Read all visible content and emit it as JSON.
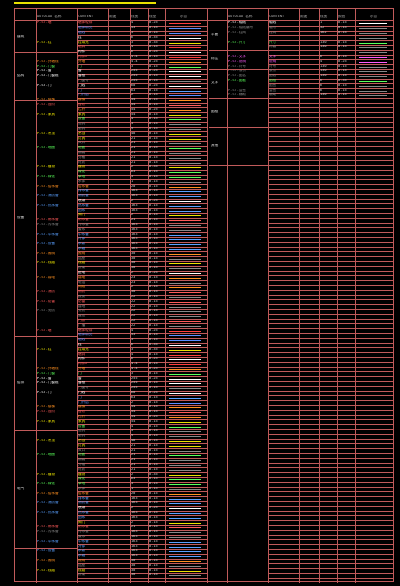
{
  "colors": {
    "border": "#c05a5a",
    "title_bar": "#e8e000",
    "background": "#000000"
  },
  "headers": {
    "left": [
      "AUTOCAD 名称",
      "CONTENT",
      "用途",
      "线宽",
      "线型",
      "示意"
    ],
    "right": [
      "AUTOCAD 名称",
      "CONTENT",
      "用途",
      "线宽",
      "颜色",
      "示意"
    ]
  },
  "left_groups": [
    {
      "name": "建筑",
      "rows": 8
    },
    {
      "name": "结构",
      "rows": 12
    },
    {
      "name": "设备",
      "rows": 60
    },
    {
      "name": "给排",
      "rows": 24
    },
    {
      "name": "电气",
      "rows": 30
    }
  ],
  "right_groups": [
    {
      "name": "平面",
      "rows": 6
    },
    {
      "name": "标注",
      "rows": 10
    },
    {
      "name": "文字",
      "rows": 12
    },
    {
      "name": "图框",
      "rows": 16
    },
    {
      "name": "其他",
      "rows": 8
    }
  ],
  "left_rows": [
    {
      "n": "P-ST-墙",
      "c": "墙体轮廓",
      "w": "4",
      "t": "0.25",
      "col": "#ff5a5a",
      "l": "#ff3c3c"
    },
    {
      "n": "",
      "c": "墙体填充",
      "w": "53",
      "t": "0.15",
      "col": "#5a8cff",
      "l": "#5a8cff"
    },
    {
      "n": "",
      "c": "墙线",
      "w": "3",
      "t": "0.15",
      "col": "#5a8cff",
      "l": "#5a8cff"
    },
    {
      "n": "",
      "c": "柱",
      "w": "6",
      "t": "0.35",
      "col": "#ffffff",
      "l": "#ffffff"
    },
    {
      "n": "P-ST-柱",
      "c": "柱填充",
      "w": "3",
      "t": "0.35",
      "col": "#e8e000",
      "l": "#e8e000"
    },
    {
      "n": "",
      "c": "墙洞",
      "w": "4",
      "t": "0.15",
      "col": "#ff5a5a",
      "l": "#ff3c3c"
    },
    {
      "n": "",
      "c": "构件",
      "w": "6",
      "t": "0.25",
      "col": "#ffffff",
      "l": "#ffffff"
    },
    {
      "n": "",
      "c": "构件2",
      "w": "4.4",
      "t": "0.15",
      "col": "#ff5a5a",
      "l": "#ff3c3c"
    },
    {
      "n": "P-ST-外墙线",
      "c": "外墙",
      "w": "4.4",
      "t": "0.25",
      "col": "#ff9020",
      "l": "#ff9020"
    },
    {
      "n": "P-ST-门窗",
      "c": "门",
      "w": "3",
      "t": "0.15",
      "col": "#5aff5a",
      "l": "#5aff5a"
    },
    {
      "n": "P-ST-窗",
      "c": "窗",
      "w": "255",
      "t": "0.25",
      "col": "#ffffff",
      "l": "#ffffff"
    },
    {
      "n": "P-ST-门窗框",
      "c": "窗框",
      "w": "255",
      "t": "0.15",
      "col": "#ffffff",
      "l": "#ffffff"
    },
    {
      "n": "",
      "c": "门窗号",
      "w": "255",
      "t": "0.15",
      "col": "#888888",
      "l": "#888888"
    },
    {
      "n": "P-ST-门",
      "c": "门线",
      "w": "60",
      "t": "0.25",
      "col": "#ffffff",
      "l": "#ffffff"
    },
    {
      "n": "",
      "c": "门",
      "w": "63",
      "t": "0.15",
      "col": "#5aa0ff",
      "l": "#5aa0ff"
    },
    {
      "n": "",
      "c": "门开启",
      "w": "2",
      "t": "0.15",
      "col": "#5a8cff",
      "l": "#5a8cff"
    },
    {
      "n": "P-ST-楼梯",
      "c": "楼梯",
      "w": "54",
      "t": "0.15",
      "col": "#ff9020",
      "l": "#ff9020"
    },
    {
      "n": "P-ST-台阶",
      "c": "台阶",
      "w": "54",
      "t": "0.15",
      "col": "#ff5a5a",
      "l": "#ff5a5a"
    },
    {
      "n": "",
      "c": "栏杆",
      "w": "54",
      "t": "0.25",
      "col": "#ff9020",
      "l": "#ff9020"
    },
    {
      "n": "P-ST-家具",
      "c": "家具",
      "w": "54",
      "t": "0.15",
      "col": "#e8e000",
      "l": "#e8e000"
    },
    {
      "n": "",
      "c": "设备",
      "w": "4",
      "t": "0.15",
      "col": "#5aff5a",
      "l": "#5aff5a"
    },
    {
      "n": "",
      "c": "洁具",
      "w": "3",
      "t": "0.15",
      "col": "#888888",
      "l": "#888888"
    },
    {
      "n": "",
      "c": "厨具",
      "w": "9",
      "t": "0.15",
      "col": "#888888",
      "l": "#888888"
    },
    {
      "n": "P-ST-吊顶",
      "c": "吊顶",
      "w": "48",
      "t": "0.15",
      "col": "#e8e000",
      "l": "#e8e000"
    },
    {
      "n": "",
      "c": "灯具",
      "w": "21",
      "t": "0.15",
      "col": "#e8e000",
      "l": "#e8e000"
    },
    {
      "n": "",
      "c": "风口",
      "w": "21",
      "t": "0.15",
      "col": "#888888",
      "l": "#888888"
    },
    {
      "n": "P-ST-地面",
      "c": "地面",
      "w": "21",
      "t": "0.15",
      "col": "#5aff5a",
      "l": "#5aff5a"
    },
    {
      "n": "",
      "c": "铺装",
      "w": "21",
      "t": "0.15",
      "col": "#888888",
      "l": "#888888"
    },
    {
      "n": "",
      "c": "分格",
      "w": "21",
      "t": "0.15",
      "col": "#888888",
      "l": "#888888"
    },
    {
      "n": "",
      "c": "材质",
      "w": "21",
      "t": "0.15",
      "col": "#888888",
      "l": "#888888"
    },
    {
      "n": "P-ST-植物",
      "c": "植物",
      "w": "2",
      "t": "0.35",
      "col": "#e8e000",
      "l": "#e8e000"
    },
    {
      "n": "",
      "c": "绿化",
      "w": "63",
      "t": "0.15",
      "col": "#5aff5a",
      "l": "#5aff5a"
    },
    {
      "n": "P-ST-绿化",
      "c": "草地",
      "w": "3",
      "t": "0.15",
      "col": "#5aff5a",
      "l": "#5aff5a"
    },
    {
      "n": "",
      "c": "水体",
      "w": "1",
      "t": "0.15",
      "col": "#888888",
      "l": "#888888"
    },
    {
      "n": "P-ST-给水管",
      "c": "给水管",
      "w": "20",
      "t": "0.15",
      "col": "#ff9020",
      "l": "#ff9020"
    },
    {
      "n": "",
      "c": "排水管",
      "w": "163",
      "t": "0.15",
      "col": "#5aa0ff",
      "l": "#5aa0ff"
    },
    {
      "n": "P-ST-消防管",
      "c": "消防管",
      "w": "163",
      "t": "0.15",
      "col": "#5aa0ff",
      "l": "#5aa0ff"
    },
    {
      "n": "",
      "c": "喷淋",
      "w": "2",
      "t": "0.25",
      "col": "#ffffff",
      "l": "#ffffff"
    },
    {
      "n": "P-ST-热水管",
      "c": "热水管",
      "w": "163",
      "t": "0.15",
      "col": "#5aa0ff",
      "l": "#5aa0ff"
    },
    {
      "n": "",
      "c": "回水",
      "w": "163",
      "t": "0.15",
      "col": "#5aa0ff",
      "l": "#5aa0ff"
    },
    {
      "n": "",
      "c": "阀门",
      "w": "2",
      "t": "0.15",
      "col": "#e8e000",
      "l": "#e8e000"
    },
    {
      "n": "P-ST-雨水管",
      "c": "雨水管",
      "w": "21",
      "t": "0.15",
      "col": "#ff5a5a",
      "l": "#ff5a5a"
    },
    {
      "n": "P-ST-污水管",
      "c": "污水管",
      "w": "163",
      "t": "0.15",
      "col": "#888888",
      "l": "#888888"
    },
    {
      "n": "",
      "c": "废水",
      "w": "163",
      "t": "0.15",
      "col": "#888888",
      "l": "#888888"
    },
    {
      "n": "P-ST-中水管",
      "c": "中水管",
      "w": "163",
      "t": "0.15",
      "col": "#5aa0ff",
      "l": "#5aa0ff"
    },
    {
      "n": "",
      "c": "冷却",
      "w": "163",
      "t": "0.15",
      "col": "#5aa0ff",
      "l": "#5aa0ff"
    },
    {
      "n": "P-ST-设备",
      "c": "水泵",
      "w": "163",
      "t": "0.15",
      "col": "#5aa0ff",
      "l": "#5aa0ff"
    },
    {
      "n": "",
      "c": "水箱",
      "w": "163",
      "t": "0.15",
      "col": "#5aa0ff",
      "l": "#5aa0ff"
    },
    {
      "n": "P-ST-照明",
      "c": "照明",
      "w": "30",
      "t": "0.15",
      "col": "#ff9020",
      "l": "#ff9020"
    },
    {
      "n": "",
      "c": "插座",
      "w": "30",
      "t": "0.15",
      "col": "#888888",
      "l": "#888888"
    },
    {
      "n": "P-ST-线路",
      "c": "线路",
      "w": "30",
      "t": "0.15",
      "col": "#e8e000",
      "l": "#e8e000"
    },
    {
      "n": "",
      "c": "桥架",
      "w": "30",
      "t": "0.15",
      "col": "#888888",
      "l": "#888888"
    },
    {
      "n": "",
      "c": "配电",
      "w": "2",
      "t": "0.25",
      "col": "#ffffff",
      "l": "#ffffff"
    },
    {
      "n": "P-ST-弱电",
      "c": "弱电",
      "w": "23",
      "t": "0.15",
      "col": "#ff9020",
      "l": "#ff9020"
    },
    {
      "n": "",
      "c": "电话",
      "w": "23",
      "t": "0.15",
      "col": "#888888",
      "l": "#888888"
    },
    {
      "n": "",
      "c": "网络",
      "w": "2",
      "t": "0.15",
      "col": "#ff9020",
      "l": "#ff9020"
    },
    {
      "n": "P-ST-消防",
      "c": "消防",
      "w": "30",
      "t": "0.15",
      "col": "#ff5a5a",
      "l": "#ff5a5a"
    },
    {
      "n": "",
      "c": "报警",
      "w": "22",
      "t": "0.15",
      "col": "#888888",
      "l": "#888888"
    },
    {
      "n": "P-ST-防雷",
      "c": "防雷",
      "w": "22",
      "t": "0.15",
      "col": "#ff5a5a",
      "l": "#ff5a5a"
    },
    {
      "n": "",
      "c": "接地",
      "w": "22",
      "t": "0.15",
      "col": "#888888",
      "l": "#888888"
    },
    {
      "n": "P-ST-安防",
      "c": "安防",
      "w": "22",
      "t": "0.15",
      "col": "#888888",
      "l": "#888888"
    },
    {
      "n": "",
      "c": "监控",
      "w": "22",
      "t": "0.15",
      "col": "#888888",
      "l": "#888888"
    },
    {
      "n": "",
      "c": "门禁",
      "w": "22",
      "t": "0.15",
      "col": "#ff5a5a",
      "l": "#ff5a5a"
    },
    {
      "n": "",
      "c": "广播",
      "w": "22",
      "t": "0.15",
      "col": "#888888",
      "l": "#888888"
    }
  ],
  "right_rows": [
    {
      "n": "P-ST-轴线",
      "c": "轴线",
      "w": "1",
      "t": "0.15",
      "col": "#ffffff",
      "l": "#ffffff"
    },
    {
      "n": "P-ST-轴线编号",
      "c": "轴号",
      "w": "32",
      "t": "0.15",
      "col": "#888888",
      "l": "#888888"
    },
    {
      "n": "P-ST-柱网",
      "c": "柱网",
      "w": "162",
      "t": "0.15",
      "col": "#888888",
      "l": "#888888"
    },
    {
      "n": "",
      "c": "",
      "w": "",
      "t": "",
      "col": "#888888",
      "l": "#888888"
    },
    {
      "n": "P-ST-尺寸",
      "c": "尺寸",
      "w": "130",
      "t": "0.15",
      "col": "#5aff5a",
      "l": "#5aff5a"
    },
    {
      "n": "",
      "c": "标高",
      "w": "130",
      "t": "0.15",
      "col": "#888888",
      "l": "#888888"
    },
    {
      "n": "",
      "c": "",
      "w": "",
      "t": "",
      "col": "#888888",
      "l": "#888888"
    },
    {
      "n": "P-ST-文字",
      "c": "文字",
      "w": "6",
      "t": "0.15",
      "col": "#ff5aff",
      "l": "#ff5aff"
    },
    {
      "n": "P-ST-说明",
      "c": "说明",
      "w": "4",
      "t": "0.25",
      "col": "#ff5aff",
      "l": "#ff5aff"
    },
    {
      "n": "P-ST-符号",
      "c": "符号",
      "w": "130",
      "t": "0.15",
      "col": "#888888",
      "l": "#888888"
    },
    {
      "n": "P-ST-索引",
      "c": "索引",
      "w": "130",
      "t": "0.15",
      "col": "#888888",
      "l": "#888888"
    },
    {
      "n": "P-ST-图名",
      "c": "图名",
      "w": "130",
      "t": "0.15",
      "col": "#888888",
      "l": "#888888"
    },
    {
      "n": "P-ST-图框",
      "c": "图框",
      "w": "6",
      "t": "0.35",
      "col": "#5aff5a",
      "l": "#5aff5a"
    },
    {
      "n": "",
      "c": "图签",
      "w": "6",
      "t": "0.15",
      "col": "#888888",
      "l": "#888888"
    },
    {
      "n": "P-ST-会签",
      "c": "会签",
      "w": "6",
      "t": "0.15",
      "col": "#888888",
      "l": "#888888"
    },
    {
      "n": "P-ST-辅助",
      "c": "辅助",
      "w": "130",
      "t": "0.15",
      "col": "#888888",
      "l": "#888888"
    }
  ]
}
